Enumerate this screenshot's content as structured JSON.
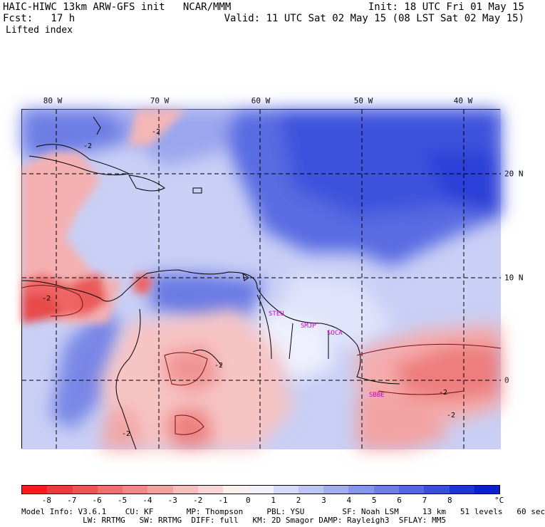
{
  "header": {
    "model": "HAIC-HIWC 13km ARW-GFS init   NCAR/MMM",
    "init": "Init: 18 UTC Fri 01 May 15",
    "fcst": "Fcst:   17 h",
    "valid": "Valid: 11 UTC Sat 02 May 15 (08 LST Sat 02 May 15)",
    "field": "Lifted index"
  },
  "map": {
    "lon_labels": [
      "80 W",
      "70 W",
      "60 W",
      "50 W",
      "40 W"
    ],
    "lat_labels": [
      "20 N",
      "10 N",
      "0"
    ],
    "stations": [
      "STEU",
      "SMJP",
      "SOCA",
      "SBBE"
    ],
    "contour_labels": [
      "-2",
      "-2",
      "-2",
      "-2",
      "-2",
      "-2",
      "-2"
    ]
  },
  "colorbar": {
    "ticks": [
      "-8",
      "-7",
      "-6",
      "-5",
      "-4",
      "-3",
      "-2",
      "-1",
      "0",
      "1",
      "2",
      "3",
      "4",
      "5",
      "6",
      "7",
      "8"
    ],
    "unit": "°C",
    "colors": [
      "#ff1a1a",
      "#f0393b",
      "#ee5454",
      "#ee6f6f",
      "#f08888",
      "#f3a2a2",
      "#f7bcbc",
      "#fad5d5",
      "#fdeeee",
      "#eef0fd",
      "#d6dbf8",
      "#bcc4f3",
      "#a2adee",
      "#8896e9",
      "#6e7ee5",
      "#5466e0",
      "#3a4edc",
      "#1f34d6",
      "#0a1fd0"
    ]
  },
  "footer": {
    "line1": "Model Info: V3.6.1    CU: KF       MP: Thompson     PBL: YSU        SF: Noah LSM     13 km   51 levels   60 sec",
    "line2": "             LW: RRTMG   SW: RRTMG  DIFF: full   KM: 2D Smagor DAMP: Rayleigh3  SFLAY: MM5"
  }
}
